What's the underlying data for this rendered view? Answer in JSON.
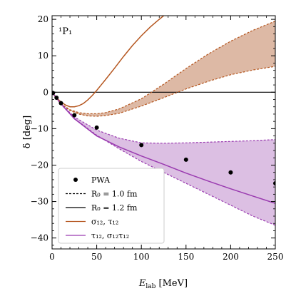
{
  "chart_data": {
    "type": "line",
    "panel_label": "¹P₁",
    "xlabel": "E_lab [MeV]",
    "xlabel_main": "E",
    "xlabel_sub": "lab",
    "xlabel_unit": " [MeV]",
    "ylabel": "δ [deg]",
    "xlim": [
      0,
      250
    ],
    "ylim": [
      -43,
      21
    ],
    "x_ticks": [
      0,
      50,
      100,
      150,
      200,
      250
    ],
    "y_ticks": [
      -40,
      -30,
      -20,
      -10,
      0,
      10,
      20
    ],
    "x_tick_labels": [
      "0",
      "50",
      "100",
      "150",
      "200",
      "250"
    ],
    "y_tick_labels": [
      "−40",
      "−30",
      "−20",
      "−10",
      "0",
      "10",
      "20"
    ],
    "grid": false,
    "legend_position": "bottom-left",
    "colors": {
      "orange": "#b5561f",
      "orange_fill": "#ddb9a5",
      "purple": "#9a3bb0",
      "purple_fill": "#dcbfe3",
      "zero_line": "#000000"
    },
    "legend": [
      {
        "kind": "marker",
        "label": "PWA"
      },
      {
        "kind": "dashed",
        "label": "R₀ = 1.0 fm"
      },
      {
        "kind": "solid-black",
        "label": "R₀ = 1.2 fm"
      },
      {
        "kind": "solid-orange",
        "label": "σ₁₂, τ₁₂"
      },
      {
        "kind": "solid-purple",
        "label": "τ₁₂, σ₁₂τ₁₂"
      }
    ],
    "pwa": {
      "x": [
        1,
        5,
        10,
        25,
        50,
        100,
        150,
        200,
        250
      ],
      "y": [
        -0.2,
        -1.5,
        -3.0,
        -6.3,
        -9.7,
        -14.5,
        -18.5,
        -22.0,
        -25.0
      ]
    },
    "series": [
      {
        "key": "orange_band_upper",
        "x": [
          0,
          5,
          10,
          20,
          30,
          40,
          50,
          60,
          75,
          100,
          125,
          150,
          175,
          200,
          225,
          250
        ],
        "y": [
          0,
          -1.8,
          -3.2,
          -4.8,
          -5.6,
          -5.9,
          -5.9,
          -5.6,
          -4.6,
          -1.8,
          2.2,
          6.5,
          10.5,
          14.0,
          17.0,
          19.5
        ]
      },
      {
        "key": "orange_band_lower",
        "x": [
          0,
          5,
          10,
          20,
          30,
          40,
          50,
          60,
          75,
          100,
          125,
          150,
          175,
          200,
          225,
          250
        ],
        "y": [
          0,
          -1.8,
          -3.3,
          -5.0,
          -6.0,
          -6.5,
          -6.6,
          -6.4,
          -5.8,
          -3.8,
          -1.5,
          0.9,
          3.0,
          4.8,
          6.1,
          7.1
        ]
      },
      {
        "key": "orange_solid",
        "x": [
          0,
          5,
          10,
          15,
          20,
          25,
          30,
          35,
          40,
          45,
          50,
          55,
          60,
          70,
          80,
          90,
          100,
          110,
          120,
          130,
          140
        ],
        "y": [
          0,
          -1.5,
          -2.7,
          -3.5,
          -4.0,
          -4.0,
          -3.7,
          -3.1,
          -2.1,
          -0.9,
          0.5,
          2.0,
          3.5,
          6.6,
          9.8,
          12.8,
          15.5,
          17.9,
          20.0,
          22.0,
          24.0
        ]
      },
      {
        "key": "purple_band_upper",
        "x": [
          0,
          5,
          10,
          25,
          50,
          75,
          100,
          125,
          150,
          175,
          200,
          225,
          250
        ],
        "y": [
          0,
          -1.6,
          -3.2,
          -6.8,
          -10.4,
          -12.6,
          -13.9,
          -14.0,
          -13.9,
          -13.7,
          -13.5,
          -13.3,
          -13.0
        ]
      },
      {
        "key": "purple_band_lower",
        "x": [
          0,
          5,
          10,
          25,
          50,
          75,
          100,
          125,
          150,
          175,
          200,
          225,
          250
        ],
        "y": [
          0,
          -1.6,
          -3.3,
          -7.2,
          -11.8,
          -15.5,
          -19.0,
          -22.0,
          -25.0,
          -28.0,
          -31.0,
          -34.0,
          -36.5
        ]
      },
      {
        "key": "purple_solid",
        "x": [
          0,
          5,
          10,
          25,
          50,
          75,
          100,
          125,
          150,
          175,
          200,
          225,
          250
        ],
        "y": [
          0,
          -1.6,
          -3.2,
          -7.3,
          -12.0,
          -15.0,
          -17.5,
          -19.8,
          -22.2,
          -24.4,
          -26.5,
          -28.5,
          -30.5
        ]
      }
    ]
  }
}
